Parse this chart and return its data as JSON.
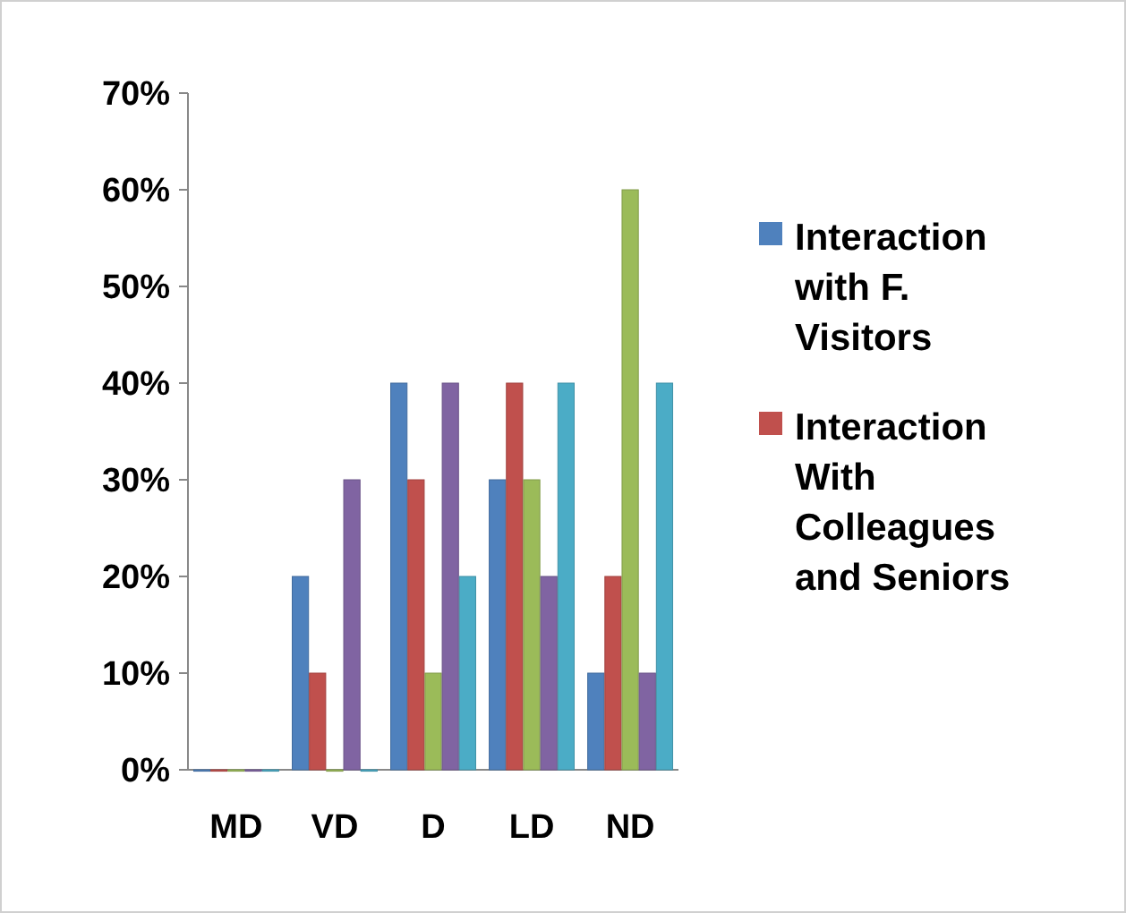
{
  "chart_data": {
    "type": "bar",
    "categories": [
      "MD",
      "VD",
      "D",
      "LD",
      "ND"
    ],
    "series": [
      {
        "name": "Interaction with F. Visitors",
        "color": "#4f81bd",
        "values": [
          0,
          20,
          40,
          30,
          10
        ]
      },
      {
        "name": "Interaction With Colleagues and Seniors",
        "color": "#c0504d",
        "values": [
          0,
          10,
          30,
          40,
          20
        ]
      },
      {
        "color": "#9bbb59",
        "values": [
          0,
          0,
          10,
          30,
          60
        ]
      },
      {
        "color": "#8064a2",
        "values": [
          0,
          30,
          40,
          20,
          10
        ]
      },
      {
        "color": "#4bacc6",
        "values": [
          0,
          0,
          20,
          40,
          40
        ]
      }
    ],
    "ylim": [
      0,
      70
    ],
    "yticks": [
      {
        "value": 0,
        "label": "0%"
      },
      {
        "value": 10,
        "label": "10%"
      },
      {
        "value": 20,
        "label": "20%"
      },
      {
        "value": 30,
        "label": "30%"
      },
      {
        "value": 40,
        "label": "40%"
      },
      {
        "value": 50,
        "label": "50%"
      },
      {
        "value": 60,
        "label": "60%"
      },
      {
        "value": 70,
        "label": "70%"
      }
    ],
    "grid": false,
    "legend": "right"
  }
}
